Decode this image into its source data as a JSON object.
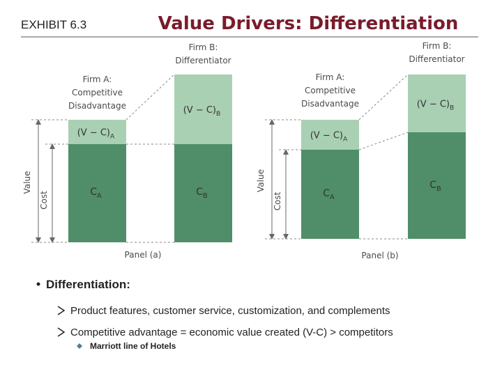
{
  "header": {
    "exhibit": "EXHIBIT 6.3",
    "title": "Value Drivers: Differentiation"
  },
  "panels": [
    {
      "label": "Panel (a)",
      "value_axis": "Value",
      "cost_axis": "Cost",
      "firms": [
        {
          "lines": [
            "Firm A:",
            "Competitive",
            "Disadvantage"
          ],
          "margin": "(V − C)",
          "margin_sub": "A",
          "cost": "C",
          "cost_sub": "A"
        },
        {
          "lines": [
            "Firm B:",
            "Differentiator"
          ],
          "margin": "(V − C)",
          "margin_sub": "B",
          "cost": "C",
          "cost_sub": "B"
        }
      ]
    },
    {
      "label": "Panel (b)",
      "value_axis": "Value",
      "cost_axis": "Cost",
      "firms": [
        {
          "lines": [
            "Firm A:",
            "Competitive",
            "Disadvantage"
          ],
          "margin": "(V − C)",
          "margin_sub": "A",
          "cost": "C",
          "cost_sub": "A"
        },
        {
          "lines": [
            "Firm B:",
            "Differentiator"
          ],
          "margin": "(V − C)",
          "margin_sub": "B",
          "cost": "C",
          "cost_sub": "B"
        }
      ]
    }
  ],
  "bullets": {
    "main": "Differentiation:",
    "items": [
      "Product features, customer service, customization, and complements",
      "Competitive advantage = economic value created (V-C) > competitors"
    ],
    "sub_items": [
      "Marriott line of Hotels"
    ]
  }
}
